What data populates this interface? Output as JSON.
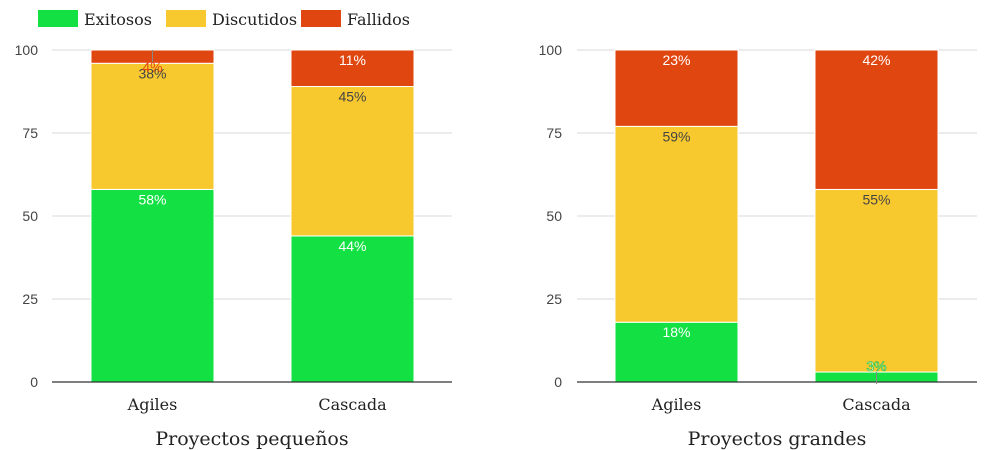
{
  "legend": [
    {
      "label": "Exitosos",
      "color": "#12e043"
    },
    {
      "label": "Discutidos",
      "color": "#f8c92f"
    },
    {
      "label": "Fallidos",
      "color": "#e0460f"
    }
  ],
  "chart_data": [
    {
      "type": "bar",
      "stacked": true,
      "title": "Proyectos pequeños",
      "categories": [
        "Agiles",
        "Cascada"
      ],
      "ylim": [
        0,
        100
      ],
      "yticks": [
        0,
        25,
        50,
        75,
        100
      ],
      "grid": true,
      "series": [
        {
          "name": "Exitosos",
          "values": [
            58,
            44
          ],
          "labels": [
            "58%",
            "44%"
          ]
        },
        {
          "name": "Discutidos",
          "values": [
            38,
            45
          ],
          "labels": [
            "38%",
            "45%"
          ]
        },
        {
          "name": "Fallidos",
          "values": [
            4,
            11
          ],
          "labels": [
            "4%",
            "11%"
          ]
        }
      ]
    },
    {
      "type": "bar",
      "stacked": true,
      "title": "Proyectos grandes",
      "categories": [
        "Agiles",
        "Cascada"
      ],
      "ylim": [
        0,
        100
      ],
      "yticks": [
        0,
        25,
        50,
        75,
        100
      ],
      "grid": true,
      "series": [
        {
          "name": "Exitosos",
          "values": [
            18,
            3
          ],
          "labels": [
            "18%",
            "3%"
          ]
        },
        {
          "name": "Discutidos",
          "values": [
            59,
            55
          ],
          "labels": [
            "59%",
            "55%"
          ]
        },
        {
          "name": "Fallidos",
          "values": [
            23,
            42
          ],
          "labels": [
            "23%",
            "42%"
          ]
        }
      ]
    }
  ]
}
